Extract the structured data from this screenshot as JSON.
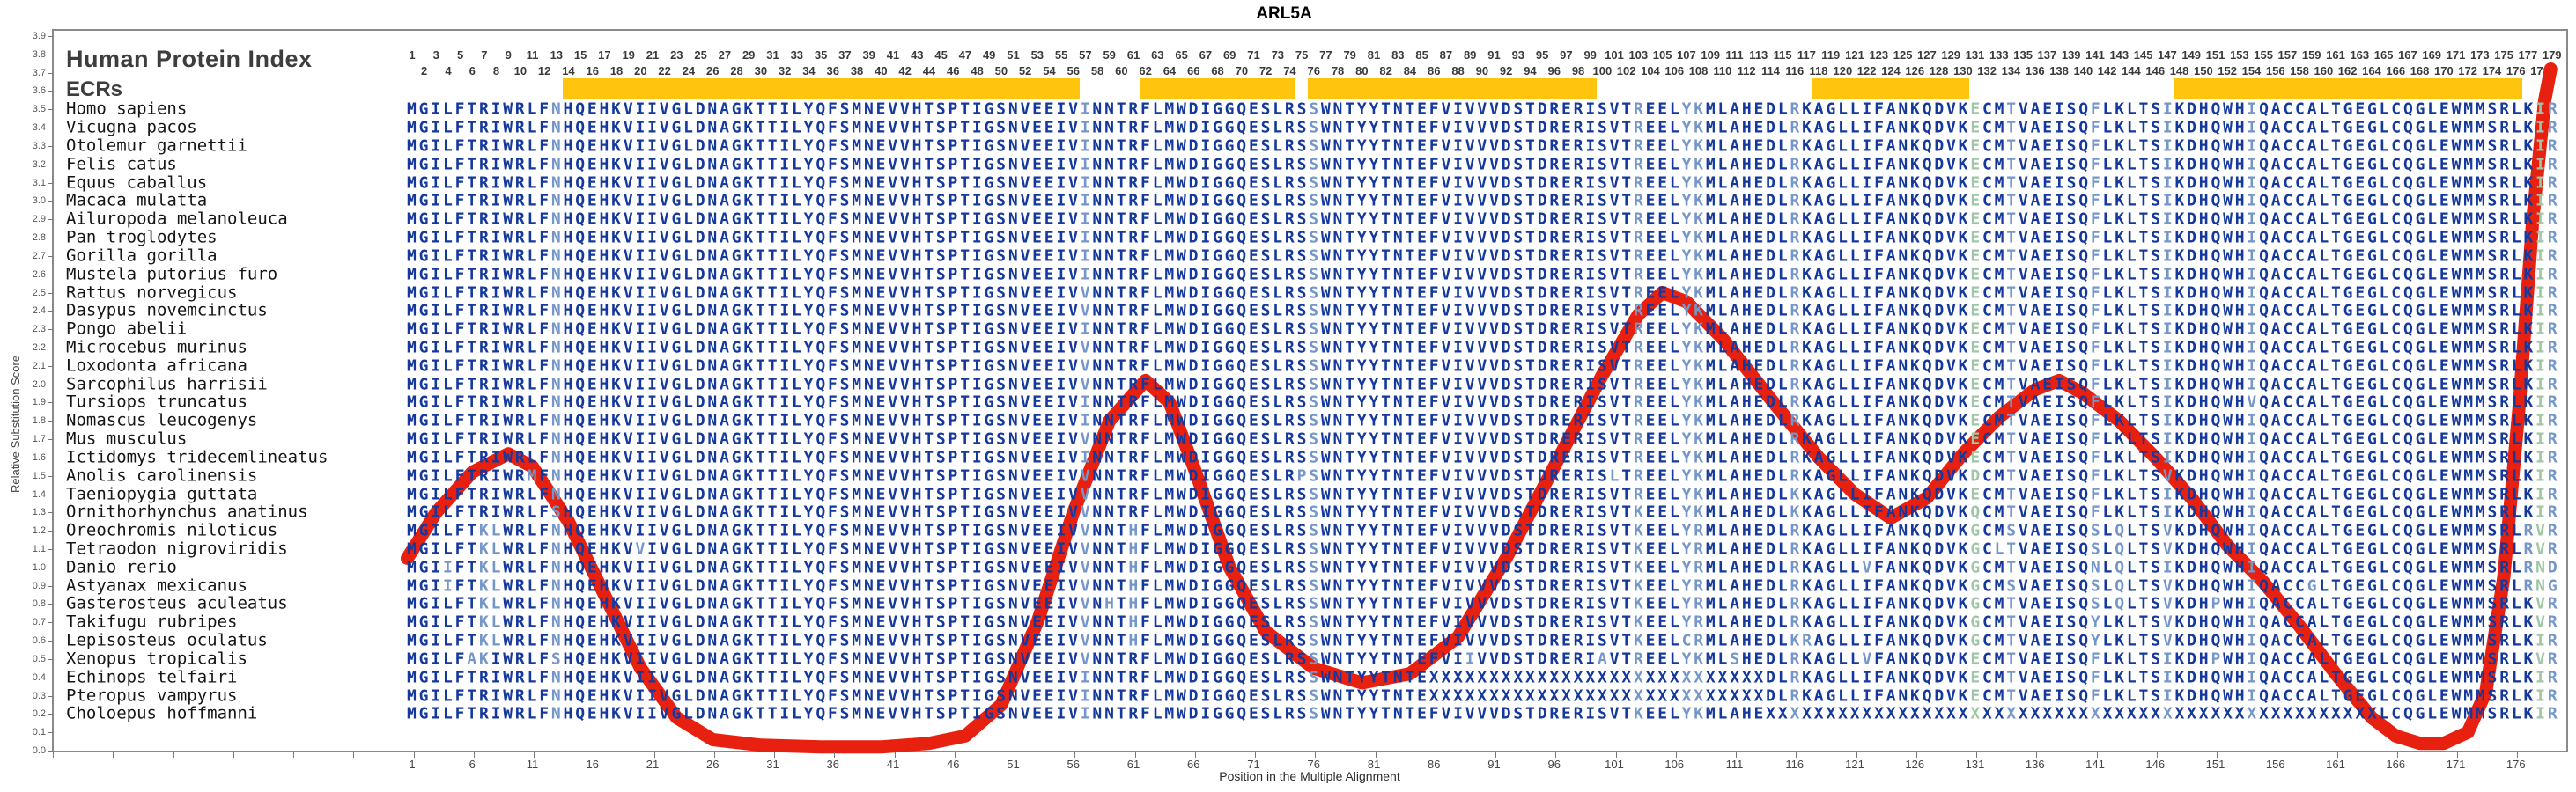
{
  "title": "ARL5A",
  "header": {
    "human_protein_index_label": "Human Protein Index",
    "ecrs_label": "ECRs"
  },
  "y_axis": {
    "label": "Relative Substitution Score",
    "min": 0.0,
    "max": 3.9,
    "tick_step": 0.1
  },
  "x_axis": {
    "label": "Position in the Multiple Alignment",
    "first_label": 1,
    "label_step": 5,
    "last_label": 176
  },
  "position_ruler": {
    "count": 179,
    "odd_row": "odd numbers 1-179 on upper line",
    "even_row": "even numbers 2-178 on lower line"
  },
  "ecr_bars": [
    {
      "start": 14,
      "end": 56
    },
    {
      "start": 62,
      "end": 74
    },
    {
      "start": 76,
      "end": 99
    },
    {
      "start": 118,
      "end": 130
    },
    {
      "start": 148,
      "end": 176
    }
  ],
  "colors": {
    "sequence_conserved": "#14389C",
    "sequence_variable": "#7496C8",
    "sequence_green": "#9FC6A5",
    "ecr_bar": "#FFC40D",
    "curve": "#E82010",
    "axis": "#8a8a8a",
    "labels": "#3d3d3d"
  },
  "alignment": {
    "length": 179,
    "consensus": "MGILFTRIWRLFNHQEHKVIIVGLDNAGKTTILYQFSMNEVVHTSPTIGSNVEEIVINNTRFLMWDIGGQESLRSSWNTYYTNTEFVIVVVDSTDRERISVTREELYKMLAHEDLRKAGLLIFANKQDVKECMTVAEISQFLKLTSIKDHQWHIQACCALTGEGLCQGLEWMMSRLKIR",
    "light_columns": [
      13,
      57,
      76,
      103,
      107,
      108,
      116,
      134,
      141,
      147,
      154,
      179
    ],
    "green_columns": [
      131,
      178
    ],
    "species": [
      {
        "name": "Homo sapiens",
        "edits": {},
        "x_ranges": []
      },
      {
        "name": "Vicugna pacos",
        "edits": {},
        "x_ranges": []
      },
      {
        "name": "Otolemur garnettii",
        "edits": {},
        "x_ranges": []
      },
      {
        "name": "Felis catus",
        "edits": {},
        "x_ranges": []
      },
      {
        "name": "Equus caballus",
        "edits": {},
        "x_ranges": []
      },
      {
        "name": "Macaca mulatta",
        "edits": {},
        "x_ranges": []
      },
      {
        "name": "Ailuropoda melanoleuca",
        "edits": {},
        "x_ranges": []
      },
      {
        "name": "Pan troglodytes",
        "edits": {},
        "x_ranges": []
      },
      {
        "name": "Gorilla gorilla",
        "edits": {},
        "x_ranges": []
      },
      {
        "name": "Mustela putorius furo",
        "edits": {},
        "x_ranges": []
      },
      {
        "name": "Rattus norvegicus",
        "edits": {
          "57": "V"
        },
        "x_ranges": []
      },
      {
        "name": "Dasypus novemcinctus",
        "edits": {
          "57": "V"
        },
        "x_ranges": []
      },
      {
        "name": "Pongo abelii",
        "edits": {},
        "x_ranges": []
      },
      {
        "name": "Microcebus murinus",
        "edits": {
          "57": "V"
        },
        "x_ranges": []
      },
      {
        "name": "Loxodonta africana",
        "edits": {
          "57": "V"
        },
        "x_ranges": []
      },
      {
        "name": "Sarcophilus harrisii",
        "edits": {
          "57": "V"
        },
        "x_ranges": []
      },
      {
        "name": "Tursiops truncatus",
        "edits": {
          "154": "V"
        },
        "x_ranges": []
      },
      {
        "name": "Nomascus leucogenys",
        "edits": {},
        "x_ranges": []
      },
      {
        "name": "Mus musculus",
        "edits": {
          "57": "V"
        },
        "x_ranges": []
      },
      {
        "name": "Ictidomys tridecemlineatus",
        "edits": {},
        "x_ranges": []
      },
      {
        "name": "Anolis carolinensis",
        "edits": {
          "11": "M",
          "57": "V",
          "75": "P",
          "101": "L",
          "131": "D",
          "147": "V"
        },
        "x_ranges": []
      },
      {
        "name": "Taeniopygia guttata",
        "edits": {
          "57": "V",
          "116": "K"
        },
        "x_ranges": []
      },
      {
        "name": "Ornithorhynchus anatinus",
        "edits": {
          "13": "S",
          "57": "V",
          "103": "K",
          "116": "K",
          "131": "Q"
        },
        "x_ranges": []
      },
      {
        "name": "Oreochromis niloticus",
        "edits": {
          "7": "K",
          "8": "L",
          "57": "V",
          "61": "H",
          "103": "K",
          "108": "R",
          "131": "G",
          "134": "S",
          "141": "S",
          "143": "Q",
          "147": "V",
          "177": "R",
          "178": "V"
        },
        "x_ranges": []
      },
      {
        "name": "Tetraodon nigroviridis",
        "edits": {
          "7": "K",
          "8": "L",
          "20": "V",
          "57": "V",
          "61": "H",
          "103": "K",
          "108": "R",
          "131": "G",
          "133": "L",
          "141": "S",
          "143": "Q",
          "147": "V",
          "177": "R",
          "178": "V"
        },
        "x_ranges": []
      },
      {
        "name": "Danio rerio",
        "edits": {
          "4": "I",
          "7": "K",
          "8": "L",
          "57": "V",
          "61": "H",
          "103": "K",
          "108": "R",
          "122": "V",
          "131": "G",
          "141": "N",
          "143": "Q",
          "177": "R",
          "178": "N",
          "179": "D"
        },
        "x_ranges": []
      },
      {
        "name": "Astyanax mexicanus",
        "edits": {
          "4": "I",
          "7": "K",
          "8": "L",
          "57": "V",
          "61": "H",
          "103": "K",
          "108": "R",
          "131": "G",
          "134": "S",
          "141": "S",
          "143": "Q",
          "147": "V",
          "159": "G",
          "177": "R",
          "178": "N",
          "179": "G"
        },
        "x_ranges": []
      },
      {
        "name": "Gasterosteus aculeatus",
        "edits": {
          "7": "K",
          "8": "L",
          "57": "V",
          "59": "H",
          "61": "H",
          "103": "K",
          "108": "R",
          "131": "G",
          "141": "S",
          "143": "Q",
          "147": "V",
          "151": "P",
          "178": "V"
        },
        "x_ranges": []
      },
      {
        "name": "Takifugu rubripes",
        "edits": {
          "7": "K",
          "8": "L",
          "57": "V",
          "61": "H",
          "103": "K",
          "108": "R",
          "131": "G",
          "141": "Y",
          "147": "V",
          "178": "V"
        },
        "x_ranges": []
      },
      {
        "name": "Lepisosteus oculatus",
        "edits": {
          "7": "K",
          "8": "L",
          "57": "V",
          "61": "H",
          "103": "K",
          "107": "C",
          "108": "R",
          "116": "K",
          "117": "R",
          "131": "G",
          "141": "Y",
          "147": "V"
        },
        "x_ranges": []
      },
      {
        "name": "Xenopus tropicalis",
        "edits": {
          "6": "A",
          "7": "K",
          "13": "S",
          "57": "V",
          "89": "I",
          "100": "A",
          "111": "S",
          "122": "V",
          "151": "P",
          "178": "V"
        },
        "x_ranges": []
      },
      {
        "name": "Echinops telfairi",
        "edits": {},
        "x_ranges": [
          [
            86,
            113
          ]
        ]
      },
      {
        "name": "Pteropus vampyrus",
        "edits": {},
        "x_ranges": [
          [
            86,
            113
          ]
        ]
      },
      {
        "name": "Choloepus hoffmanni",
        "edits": {
          "103": "K"
        },
        "x_ranges": [
          [
            114,
            164
          ]
        ]
      }
    ]
  },
  "chart_data": {
    "type": "line",
    "title": "ARL5A",
    "xlabel": "Position in the Multiple Alignment",
    "ylabel": "Relative Substitution Score",
    "xlim": [
      0,
      179
    ],
    "ylim": [
      0.0,
      3.9
    ],
    "grid": false,
    "legend": "none",
    "series_name": "relative substitution score curve",
    "x": [
      0.6,
      3,
      6,
      9,
      11,
      14,
      17,
      20,
      23,
      26,
      30,
      35,
      40,
      44,
      47,
      50,
      53,
      56,
      59,
      62,
      64,
      66,
      69,
      72,
      76,
      80,
      84,
      88,
      92,
      96,
      100,
      103,
      105,
      107,
      110,
      114,
      118,
      121,
      124,
      127,
      130,
      133,
      136,
      138,
      140,
      143,
      146,
      149,
      152,
      155,
      158,
      161,
      164,
      166,
      168,
      170,
      172,
      173.5,
      175,
      176.3,
      177.4,
      178.4,
      178.9
    ],
    "y": [
      1.05,
      1.3,
      1.52,
      1.62,
      1.55,
      1.25,
      0.85,
      0.45,
      0.18,
      0.06,
      0.03,
      0.02,
      0.02,
      0.04,
      0.08,
      0.25,
      0.7,
      1.3,
      1.8,
      2.02,
      1.9,
      1.55,
      1.0,
      0.65,
      0.45,
      0.37,
      0.42,
      0.62,
      1.05,
      1.55,
      2.05,
      2.38,
      2.5,
      2.45,
      2.25,
      1.92,
      1.6,
      1.4,
      1.27,
      1.38,
      1.62,
      1.82,
      1.97,
      2.02,
      1.95,
      1.8,
      1.6,
      1.38,
      1.12,
      0.92,
      0.68,
      0.42,
      0.18,
      0.08,
      0.04,
      0.04,
      0.1,
      0.32,
      0.95,
      1.9,
      2.9,
      3.55,
      3.72
    ]
  }
}
